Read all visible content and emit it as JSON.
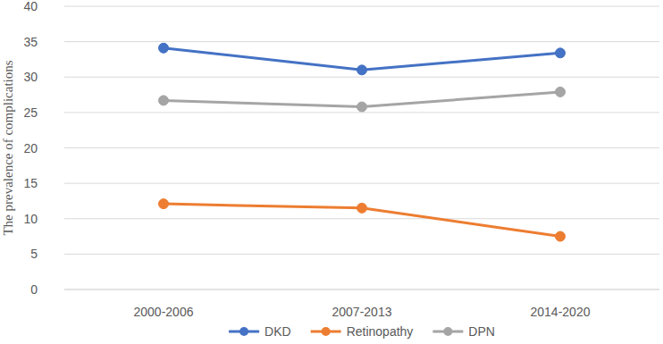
{
  "chart_data": {
    "type": "line",
    "y_label": "The prevalence of complications",
    "categories": [
      "2000-2006",
      "2007-2013",
      "2014-2020"
    ],
    "series": [
      {
        "name": "DKD",
        "color": "#4472c4",
        "marker": "circle",
        "values": [
          34.1,
          31.0,
          33.4
        ]
      },
      {
        "name": "Retinopathy",
        "color": "#ed7d31",
        "marker": "circle",
        "values": [
          12.1,
          11.5,
          7.5
        ]
      },
      {
        "name": "DPN",
        "color": "#a5a5a5",
        "marker": "circle",
        "values": [
          26.7,
          25.8,
          27.9
        ]
      }
    ],
    "ylim": [
      0,
      40
    ],
    "yticks": [
      0,
      5,
      10,
      15,
      20,
      25,
      30,
      35,
      40
    ],
    "grid": true,
    "legend": "bottom"
  }
}
